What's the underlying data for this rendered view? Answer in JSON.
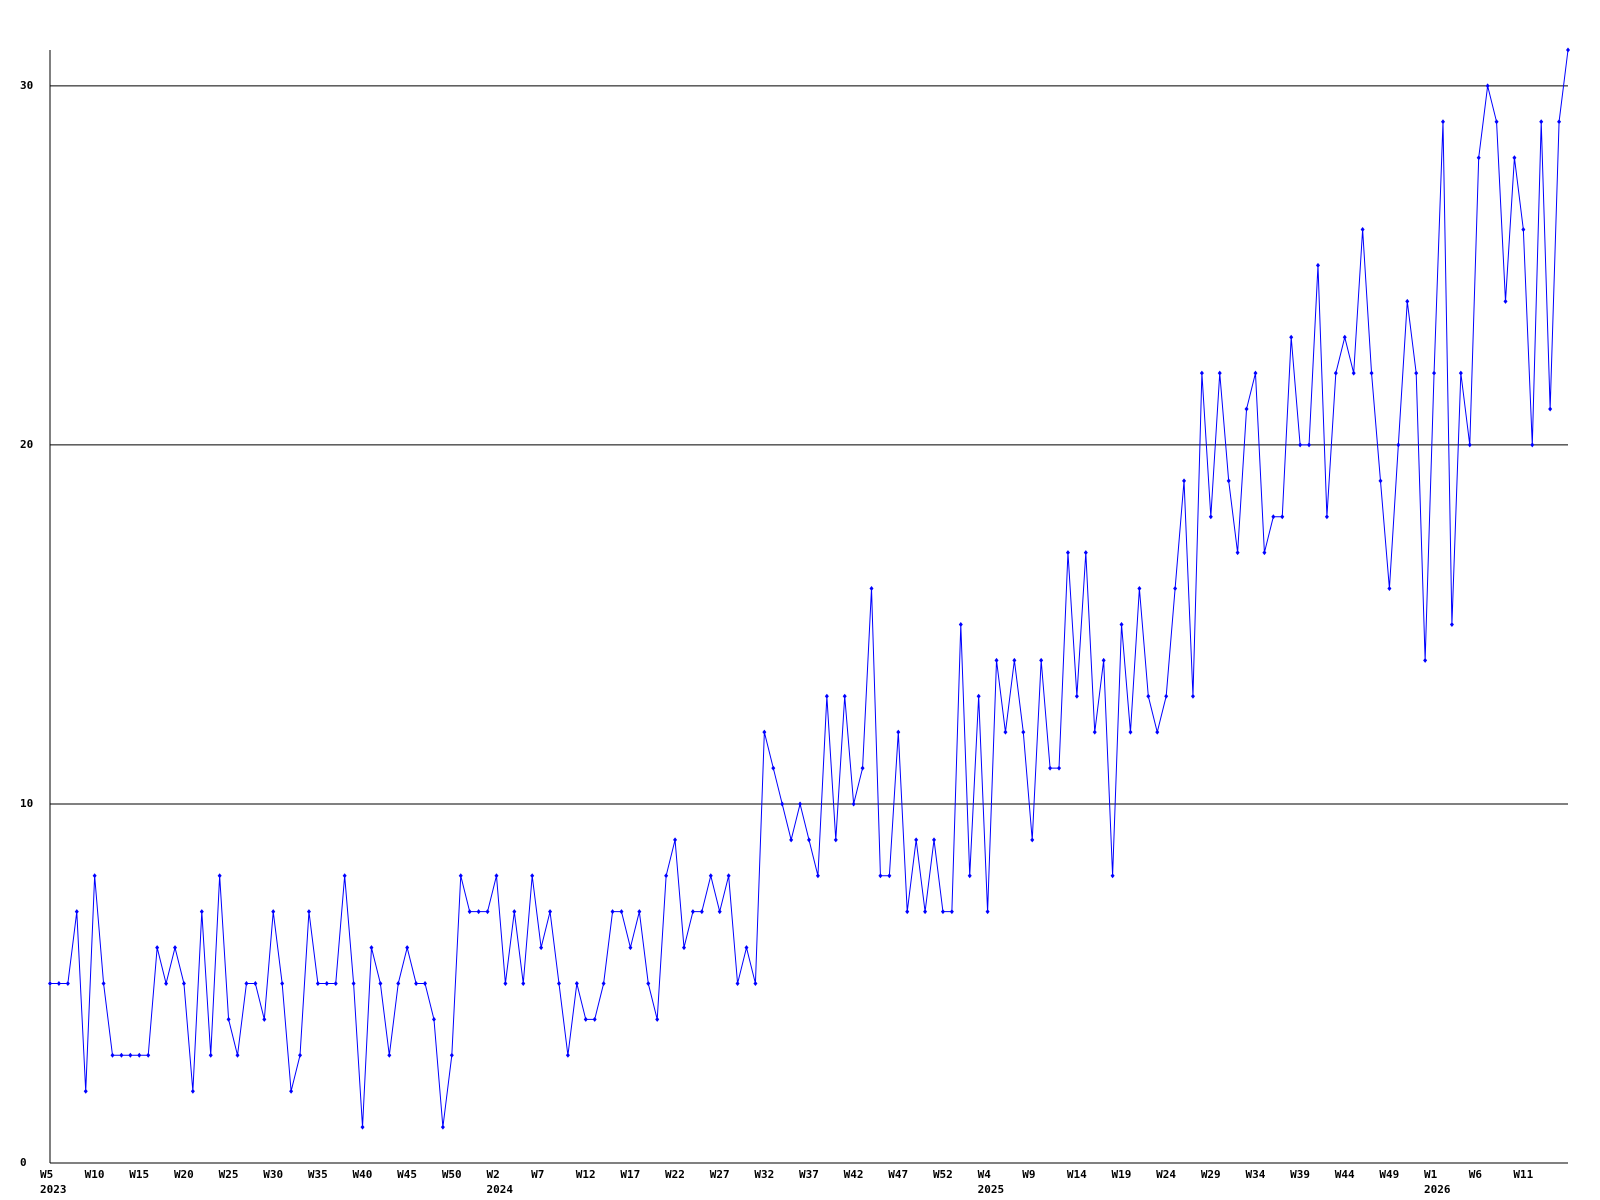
{
  "chart_data": {
    "type": "line",
    "categories": [
      "W5",
      null,
      null,
      null,
      null,
      "W10",
      null,
      null,
      null,
      null,
      "W15",
      null,
      null,
      null,
      null,
      "W20",
      null,
      null,
      null,
      null,
      "W25",
      null,
      null,
      null,
      null,
      "W30",
      null,
      null,
      null,
      null,
      "W35",
      null,
      null,
      null,
      null,
      "W40",
      null,
      null,
      null,
      null,
      "W45",
      null,
      null,
      null,
      null,
      "W50",
      null,
      null,
      null,
      null,
      "W2",
      null,
      null,
      null,
      null,
      "W7",
      null,
      null,
      null,
      null,
      "W12",
      null,
      null,
      null,
      null,
      "W17",
      null,
      null,
      null,
      null,
      "W22",
      null,
      null,
      null,
      null,
      "W27",
      null,
      null,
      null,
      null,
      "W32",
      null,
      null,
      null,
      null,
      "W37",
      null,
      null,
      null,
      null,
      "W42",
      null,
      null,
      null,
      null,
      "W47",
      null,
      null,
      null,
      null,
      "W52",
      null,
      null,
      null,
      null,
      "W4",
      null,
      null,
      null,
      null,
      "W9",
      null,
      null,
      null,
      null,
      "W14",
      null,
      null,
      null,
      null,
      "W19",
      null,
      null,
      null,
      null,
      "W24",
      null,
      null,
      null,
      null,
      "W29",
      null,
      null,
      null,
      null,
      "W34",
      null,
      null,
      null,
      null,
      "W39",
      null,
      null,
      null,
      null,
      "W44",
      null,
      null,
      null,
      null,
      "W49",
      null,
      null,
      null,
      null,
      "W1",
      null,
      null,
      null,
      null,
      "W6",
      null,
      null,
      null,
      null,
      "W11",
      null,
      null,
      null,
      null,
      null
    ],
    "year_labels": [
      "2023",
      null,
      null,
      null,
      null,
      null,
      null,
      null,
      null,
      null,
      null,
      null,
      null,
      null,
      null,
      null,
      null,
      null,
      null,
      null,
      null,
      null,
      null,
      null,
      null,
      null,
      null,
      null,
      null,
      null,
      null,
      null,
      null,
      null,
      null,
      null,
      null,
      null,
      null,
      null,
      null,
      null,
      null,
      null,
      null,
      null,
      null,
      null,
      null,
      null,
      "2024",
      null,
      null,
      null,
      null,
      null,
      null,
      null,
      null,
      null,
      null,
      null,
      null,
      null,
      null,
      null,
      null,
      null,
      null,
      null,
      null,
      null,
      null,
      null,
      null,
      null,
      null,
      null,
      null,
      null,
      null,
      null,
      null,
      null,
      null,
      null,
      null,
      null,
      null,
      null,
      null,
      null,
      null,
      null,
      null,
      null,
      null,
      null,
      null,
      null,
      null,
      null,
      null,
      null,
      null,
      "2025",
      null,
      null,
      null,
      null,
      null,
      null,
      null,
      null,
      null,
      null,
      null,
      null,
      null,
      null,
      null,
      null,
      null,
      null,
      null,
      null,
      null,
      null,
      null,
      null,
      null,
      null,
      null,
      null,
      null,
      null,
      null,
      null,
      null,
      null,
      null,
      null,
      null,
      null,
      null,
      null,
      null,
      null,
      null,
      null,
      null,
      null,
      null,
      null,
      null,
      "2026",
      null,
      null,
      null,
      null,
      null,
      null,
      null,
      null,
      null,
      null,
      null,
      null,
      null,
      null,
      null
    ],
    "series": [
      {
        "color": "#0000ff",
        "values": [
          5,
          5,
          5,
          7,
          2,
          8,
          5,
          3,
          3,
          3,
          3,
          3,
          6,
          5,
          6,
          5,
          2,
          7,
          3,
          8,
          4,
          3,
          5,
          5,
          4,
          7,
          5,
          2,
          3,
          7,
          5,
          5,
          5,
          8,
          5,
          1,
          6,
          5,
          3,
          5,
          6,
          5,
          5,
          4,
          1,
          3,
          8,
          7,
          7,
          7,
          8,
          5,
          7,
          5,
          8,
          6,
          7,
          5,
          3,
          5,
          4,
          4,
          5,
          7,
          7,
          6,
          7,
          5,
          4,
          8,
          9,
          6,
          7,
          7,
          8,
          7,
          8,
          5,
          6,
          5,
          12,
          11,
          10,
          9,
          10,
          9,
          8,
          13,
          9,
          13,
          10,
          11,
          16,
          8,
          8,
          12,
          7,
          9,
          7,
          9,
          7,
          7,
          15,
          8,
          13,
          7,
          14,
          12,
          14,
          12,
          9,
          14,
          11,
          11,
          17,
          13,
          17,
          12,
          14,
          8,
          15,
          12,
          16,
          13,
          12,
          13,
          16,
          19,
          13,
          22,
          18,
          22,
          19,
          17,
          21,
          22,
          17,
          18,
          18,
          23,
          20,
          20,
          25,
          18,
          22,
          23,
          22,
          26,
          22,
          19,
          16,
          20,
          24,
          22,
          14,
          22,
          29,
          15,
          22,
          20,
          28,
          30,
          29,
          24,
          28,
          26,
          20,
          29,
          21,
          29,
          31
        ]
      }
    ],
    "ylim": [
      0,
      31
    ],
    "yticks": [
      0,
      10,
      20,
      30
    ],
    "grid": true
  }
}
